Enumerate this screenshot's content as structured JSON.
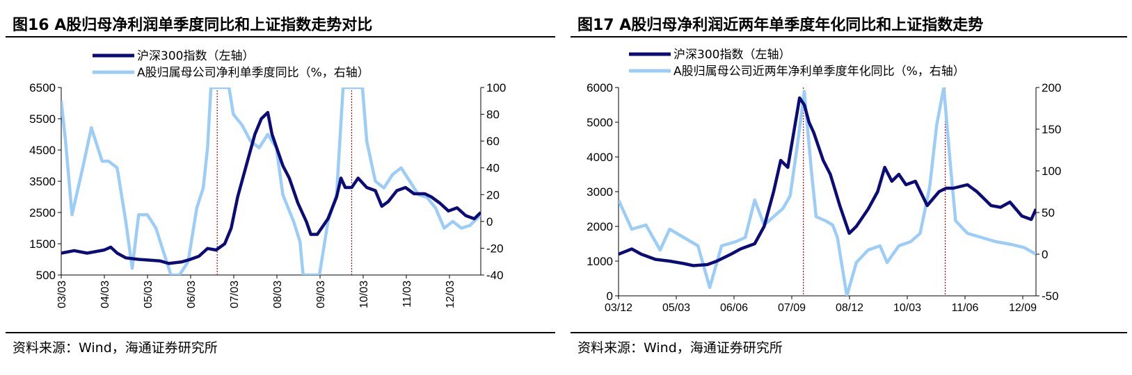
{
  "source_text": "资料来源：Wind，海通证券研究所",
  "colors": {
    "hs300": "#0c0c78",
    "profit": "#9ccdf6",
    "marker": "#c00000"
  },
  "chart_data": [
    {
      "type": "line",
      "title": "图16 A股归母净利润单季度同比和上证指数走势对比",
      "x_tick_labels": [
        "03/03",
        "04/03",
        "05/03",
        "06/03",
        "07/03",
        "08/03",
        "09/03",
        "10/03",
        "11/03",
        "12/03"
      ],
      "x_range": [
        2003.0,
        2012.75
      ],
      "y_left": {
        "range": [
          500,
          6500
        ],
        "ticks": [
          500,
          1500,
          2500,
          3500,
          4500,
          5500,
          6500
        ]
      },
      "y_right": {
        "range": [
          -40,
          100
        ],
        "ticks": [
          -40,
          -20,
          0,
          20,
          40,
          60,
          80,
          100
        ]
      },
      "vlines": [
        2006.625,
        2009.75
      ],
      "series": [
        {
          "name": "沪深300指数（左轴）",
          "axis": "left",
          "points": [
            [
              2003.0,
              1200
            ],
            [
              2003.3,
              1280
            ],
            [
              2003.6,
              1200
            ],
            [
              2004.0,
              1300
            ],
            [
              2004.15,
              1390
            ],
            [
              2004.3,
              1200
            ],
            [
              2004.5,
              1050
            ],
            [
              2004.8,
              1000
            ],
            [
              2005.0,
              980
            ],
            [
              2005.3,
              950
            ],
            [
              2005.5,
              870
            ],
            [
              2005.8,
              920
            ],
            [
              2006.0,
              1000
            ],
            [
              2006.2,
              1100
            ],
            [
              2006.4,
              1350
            ],
            [
              2006.6,
              1300
            ],
            [
              2006.8,
              1500
            ],
            [
              2006.95,
              2000
            ],
            [
              2007.1,
              3000
            ],
            [
              2007.3,
              4000
            ],
            [
              2007.5,
              5000
            ],
            [
              2007.65,
              5500
            ],
            [
              2007.8,
              5700
            ],
            [
              2007.9,
              5000
            ],
            [
              2008.0,
              4600
            ],
            [
              2008.15,
              4000
            ],
            [
              2008.3,
              3600
            ],
            [
              2008.5,
              2800
            ],
            [
              2008.7,
              2200
            ],
            [
              2008.8,
              1800
            ],
            [
              2008.95,
              1800
            ],
            [
              2009.2,
              2300
            ],
            [
              2009.4,
              3000
            ],
            [
              2009.5,
              3600
            ],
            [
              2009.6,
              3300
            ],
            [
              2009.75,
              3300
            ],
            [
              2009.9,
              3600
            ],
            [
              2010.1,
              3300
            ],
            [
              2010.3,
              3200
            ],
            [
              2010.45,
              2700
            ],
            [
              2010.6,
              2850
            ],
            [
              2010.8,
              3200
            ],
            [
              2011.0,
              3300
            ],
            [
              2011.2,
              3100
            ],
            [
              2011.45,
              3100
            ],
            [
              2011.6,
              3000
            ],
            [
              2011.8,
              2800
            ],
            [
              2012.0,
              2550
            ],
            [
              2012.2,
              2650
            ],
            [
              2012.4,
              2400
            ],
            [
              2012.6,
              2300
            ],
            [
              2012.75,
              2500
            ]
          ]
        },
        {
          "name": "A股归属母公司净利单季度同比（%，右轴）",
          "axis": "right",
          "points": [
            [
              2003.0,
              90
            ],
            [
              2003.1,
              60
            ],
            [
              2003.25,
              5
            ],
            [
              2003.5,
              40
            ],
            [
              2003.7,
              70
            ],
            [
              2003.95,
              45
            ],
            [
              2004.1,
              45
            ],
            [
              2004.3,
              40
            ],
            [
              2004.5,
              0
            ],
            [
              2004.65,
              -35
            ],
            [
              2004.8,
              5
            ],
            [
              2005.0,
              5
            ],
            [
              2005.2,
              -5
            ],
            [
              2005.4,
              -25
            ],
            [
              2005.55,
              -40
            ],
            [
              2005.75,
              -40
            ],
            [
              2005.95,
              -30
            ],
            [
              2006.15,
              10
            ],
            [
              2006.3,
              25
            ],
            [
              2006.4,
              55
            ],
            [
              2006.48,
              100
            ],
            [
              2006.9,
              100
            ],
            [
              2007.0,
              80
            ],
            [
              2007.2,
              72
            ],
            [
              2007.4,
              60
            ],
            [
              2007.6,
              55
            ],
            [
              2007.8,
              65
            ],
            [
              2008.0,
              55
            ],
            [
              2008.15,
              20
            ],
            [
              2008.4,
              0
            ],
            [
              2008.55,
              -15
            ],
            [
              2008.62,
              -40
            ],
            [
              2009.0,
              -40
            ],
            [
              2009.2,
              0
            ],
            [
              2009.4,
              20
            ],
            [
              2009.55,
              100
            ],
            [
              2010.0,
              100
            ],
            [
              2010.1,
              60
            ],
            [
              2010.3,
              30
            ],
            [
              2010.5,
              25
            ],
            [
              2010.7,
              35
            ],
            [
              2010.9,
              40
            ],
            [
              2011.1,
              30
            ],
            [
              2011.3,
              20
            ],
            [
              2011.5,
              18
            ],
            [
              2011.7,
              10
            ],
            [
              2011.9,
              -5
            ],
            [
              2012.1,
              0
            ],
            [
              2012.3,
              -5
            ],
            [
              2012.5,
              -3
            ],
            [
              2012.75,
              5
            ]
          ]
        }
      ]
    },
    {
      "type": "line",
      "title": "图17 A股归母净利润近两年单季度年化同比和上证指数走势",
      "x_tick_labels": [
        "03/12",
        "05/03",
        "06/06",
        "07/09",
        "08/12",
        "10/03",
        "11/06",
        "12/09"
      ],
      "x_range": [
        2003.92,
        2012.75
      ],
      "y_left": {
        "range": [
          0,
          6000
        ],
        "ticks": [
          0,
          1000,
          2000,
          3000,
          4000,
          5000,
          6000
        ]
      },
      "y_right": {
        "range": [
          -50,
          200
        ],
        "ticks": [
          -50,
          0,
          50,
          100,
          150,
          200
        ]
      },
      "vlines": [
        2007.83,
        2010.83
      ],
      "series": [
        {
          "name": "沪深300指数（左轴）",
          "axis": "left",
          "points": [
            [
              2003.92,
              1200
            ],
            [
              2004.2,
              1350
            ],
            [
              2004.4,
              1200
            ],
            [
              2004.7,
              1050
            ],
            [
              2005.0,
              1000
            ],
            [
              2005.3,
              930
            ],
            [
              2005.5,
              870
            ],
            [
              2005.8,
              900
            ],
            [
              2006.0,
              1000
            ],
            [
              2006.3,
              1200
            ],
            [
              2006.5,
              1350
            ],
            [
              2006.8,
              1500
            ],
            [
              2007.0,
              2000
            ],
            [
              2007.2,
              3000
            ],
            [
              2007.35,
              3900
            ],
            [
              2007.5,
              3700
            ],
            [
              2007.6,
              4500
            ],
            [
              2007.75,
              5700
            ],
            [
              2007.85,
              5500
            ],
            [
              2007.95,
              5000
            ],
            [
              2008.05,
              4700
            ],
            [
              2008.25,
              3900
            ],
            [
              2008.4,
              3500
            ],
            [
              2008.6,
              2600
            ],
            [
              2008.8,
              1800
            ],
            [
              2008.95,
              2000
            ],
            [
              2009.2,
              2500
            ],
            [
              2009.4,
              3000
            ],
            [
              2009.55,
              3700
            ],
            [
              2009.7,
              3300
            ],
            [
              2009.85,
              3500
            ],
            [
              2010.0,
              3200
            ],
            [
              2010.2,
              3300
            ],
            [
              2010.45,
              2600
            ],
            [
              2010.7,
              3000
            ],
            [
              2010.85,
              3100
            ],
            [
              2011.0,
              3100
            ],
            [
              2011.3,
              3200
            ],
            [
              2011.5,
              3000
            ],
            [
              2011.8,
              2600
            ],
            [
              2012.0,
              2550
            ],
            [
              2012.2,
              2700
            ],
            [
              2012.45,
              2300
            ],
            [
              2012.65,
              2200
            ],
            [
              2012.75,
              2500
            ]
          ]
        },
        {
          "name": "A股归属母公司近两年净利单季度年化同比（%，右轴）",
          "axis": "right",
          "points": [
            [
              2003.92,
              65
            ],
            [
              2004.2,
              30
            ],
            [
              2004.5,
              35
            ],
            [
              2004.8,
              5
            ],
            [
              2005.0,
              30
            ],
            [
              2005.3,
              20
            ],
            [
              2005.6,
              10
            ],
            [
              2005.85,
              -40
            ],
            [
              2006.1,
              10
            ],
            [
              2006.4,
              15
            ],
            [
              2006.6,
              20
            ],
            [
              2006.8,
              65
            ],
            [
              2007.0,
              35
            ],
            [
              2007.2,
              45
            ],
            [
              2007.4,
              55
            ],
            [
              2007.55,
              70
            ],
            [
              2007.7,
              130
            ],
            [
              2007.85,
              195
            ],
            [
              2008.0,
              100
            ],
            [
              2008.1,
              45
            ],
            [
              2008.3,
              40
            ],
            [
              2008.45,
              35
            ],
            [
              2008.55,
              20
            ],
            [
              2008.75,
              -50
            ],
            [
              2008.95,
              -10
            ],
            [
              2009.2,
              5
            ],
            [
              2009.45,
              10
            ],
            [
              2009.6,
              -10
            ],
            [
              2009.85,
              10
            ],
            [
              2010.1,
              15
            ],
            [
              2010.3,
              25
            ],
            [
              2010.5,
              80
            ],
            [
              2010.65,
              155
            ],
            [
              2010.8,
              200
            ],
            [
              2010.95,
              100
            ],
            [
              2011.05,
              40
            ],
            [
              2011.3,
              25
            ],
            [
              2011.6,
              20
            ],
            [
              2011.9,
              15
            ],
            [
              2012.2,
              12
            ],
            [
              2012.5,
              8
            ],
            [
              2012.75,
              0
            ]
          ]
        }
      ]
    }
  ]
}
